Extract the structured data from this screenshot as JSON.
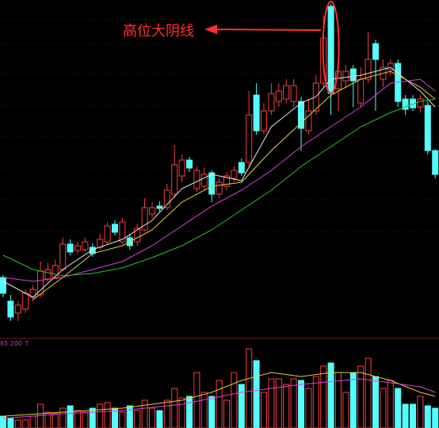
{
  "chart_data": [
    {
      "type": "candlestick",
      "annotation": "高位大阴线",
      "up_color": "#ff3c3c",
      "down_color": "#54fcfc",
      "annotation_color": "#ff3030",
      "ylim": [
        1.5,
        44
      ],
      "open": [
        9.0,
        6.0,
        4.5,
        5.0,
        6.5,
        6.8,
        8.8,
        9.0,
        10.0,
        13.2,
        12.4,
        12.5,
        12.8,
        12.8,
        13.5,
        15.7,
        13.5,
        14.0,
        13.5,
        15.0,
        17.0,
        18.0,
        17.8,
        19.5,
        21.8,
        23.8,
        20.2,
        20.5,
        22.2,
        19.5,
        20.5,
        21.5,
        23.5,
        23.5,
        32.0,
        27.5,
        30.0,
        31.2,
        31.5,
        31.2,
        31.2,
        27.5,
        30.0,
        33.5,
        43.2,
        32.8,
        33.8,
        35.3,
        31.0,
        34.0,
        38.5,
        34.0,
        35.2,
        36.0,
        31.5,
        31.5,
        30.5,
        30.7,
        25.0
      ],
      "high": [
        9.3,
        6.8,
        6.0,
        7.5,
        8.0,
        11.0,
        10.8,
        11.2,
        14.0,
        13.8,
        13.5,
        14.0,
        13.3,
        14.5,
        16.0,
        16.2,
        16.5,
        14.5,
        15.8,
        19.0,
        18.5,
        18.6,
        20.8,
        25.7,
        24.5,
        24.2,
        23.0,
        22.8,
        22.5,
        21.5,
        22.3,
        23.0,
        24.0,
        32.5,
        33.5,
        31.0,
        33.5,
        33.5,
        34.0,
        34.0,
        31.8,
        31.5,
        34.5,
        42.0,
        43.5,
        36.0,
        35.8,
        35.8,
        35.5,
        40.0,
        39.0,
        36.5,
        36.5,
        36.5,
        32.0,
        32.0,
        32.0,
        31.2,
        25.2
      ],
      "low": [
        6.5,
        3.5,
        3.5,
        4.5,
        6.0,
        6.5,
        8.5,
        8.8,
        9.8,
        11.8,
        12.0,
        12.2,
        11.6,
        12.5,
        13.2,
        14.3,
        13.2,
        12.5,
        13.0,
        14.8,
        16.5,
        17.3,
        17.5,
        19.0,
        21.0,
        22.3,
        19.8,
        20.0,
        18.5,
        19.0,
        20.0,
        21.0,
        21.8,
        23.0,
        27.0,
        27.0,
        29.5,
        30.5,
        31.0,
        30.5,
        25.0,
        27.0,
        29.5,
        33.0,
        29.5,
        30.0,
        33.0,
        30.5,
        30.5,
        33.5,
        30.0,
        33.0,
        34.5,
        30.5,
        29.5,
        30.0,
        29.8,
        24.5,
        21.5
      ],
      "close": [
        7.0,
        4.0,
        5.5,
        7.0,
        7.5,
        9.8,
        10.0,
        10.5,
        13.2,
        12.2,
        13.0,
        13.5,
        12.0,
        13.8,
        15.5,
        14.7,
        16.0,
        13.0,
        15.2,
        17.8,
        17.8,
        17.7,
        20.0,
        23.2,
        23.8,
        22.8,
        22.5,
        22.0,
        19.5,
        21.0,
        21.8,
        22.5,
        22.2,
        29.5,
        27.5,
        30.0,
        32.2,
        32.5,
        33.2,
        33.2,
        27.8,
        30.0,
        33.5,
        39.2,
        32.2,
        35.0,
        35.0,
        33.8,
        34.0,
        36.5,
        36.5,
        35.5,
        36.0,
        31.2,
        30.2,
        30.4,
        31.5,
        25.0,
        22.0
      ],
      "series": [
        {
          "color": "#e6e6e6",
          "x": [
            0,
            4,
            8,
            12,
            16,
            20,
            24,
            28,
            32,
            36,
            40,
            42,
            44,
            48,
            52,
            56,
            58
          ],
          "values": [
            8.5,
            6.5,
            10.0,
            12.5,
            13.8,
            16.2,
            20.2,
            22.0,
            21.2,
            28.0,
            31.0,
            31.8,
            34.0,
            34.5,
            35.5,
            32.5,
            30.5
          ]
        },
        {
          "color": "#e0d040",
          "x": [
            4,
            8,
            12,
            16,
            20,
            24,
            28,
            32,
            36,
            40,
            44,
            48,
            52,
            56,
            58
          ],
          "values": [
            6.2,
            9.0,
            12.0,
            13.0,
            15.0,
            18.5,
            20.5,
            21.0,
            25.0,
            28.5,
            32.0,
            34.0,
            35.0,
            33.0,
            31.5
          ]
        },
        {
          "color": "#e040e0",
          "x": [
            0,
            4,
            8,
            12,
            16,
            20,
            24,
            28,
            32,
            36,
            40,
            44,
            48,
            52,
            56,
            58
          ],
          "values": [
            9.0,
            8.5,
            9.0,
            10.0,
            11.0,
            13.0,
            15.5,
            18.0,
            20.0,
            22.5,
            25.5,
            28.0,
            30.5,
            33.5,
            34.0,
            32.5
          ]
        },
        {
          "color": "#30c030",
          "x": [
            0,
            4,
            8,
            12,
            16,
            20,
            24,
            28,
            32,
            36,
            40,
            44,
            48,
            52,
            56,
            58
          ],
          "values": [
            11.8,
            10.0,
            9.2,
            9.5,
            10.2,
            11.5,
            13.0,
            15.0,
            17.5,
            20.0,
            23.0,
            25.5,
            28.0,
            29.8,
            31.2,
            31.5
          ]
        }
      ]
    },
    {
      "type": "volume",
      "up_color": "#ff3c3c",
      "down_color": "#54fcfc",
      "tick_color": "#c040c0",
      "ylim": [
        0,
        85.2
      ],
      "yticks": [
        {
          "value": 85.2,
          "label": "85.200 ↑"
        }
      ],
      "values": [
        11.9,
        9.6,
        8.0,
        8.0,
        11.9,
        23.9,
        15.9,
        14.3,
        19.9,
        22.3,
        17.5,
        15.9,
        19.9,
        23.9,
        25.5,
        19.9,
        15.9,
        22.3,
        17.5,
        27.9,
        19.9,
        17.5,
        27.9,
        39.8,
        30.2,
        31.8,
        55.7,
        35.8,
        31.8,
        47.8,
        27.9,
        55.7,
        43.8,
        79.6,
        67.7,
        35.8,
        49.4,
        49.4,
        43.8,
        49.4,
        47.8,
        39.8,
        51.7,
        62.1,
        65.3,
        55.7,
        35.8,
        55.7,
        62.1,
        70.0,
        51.7,
        39.8,
        47.8,
        39.8,
        23.9,
        23.9,
        31.8,
        22.3,
        19.9
      ],
      "series": [
        {
          "color": "#e0d040",
          "x": [
            0,
            8,
            16,
            24,
            28,
            32,
            36,
            40,
            44,
            48,
            52,
            56,
            58
          ],
          "values": [
            11.9,
            15.9,
            19.9,
            27.9,
            35.8,
            47.8,
            55.7,
            51.7,
            55.7,
            55.7,
            47.8,
            35.8,
            31.8
          ]
        },
        {
          "color": "#e040e0",
          "x": [
            0,
            8,
            16,
            24,
            32,
            40,
            48,
            56,
            58
          ],
          "values": [
            9.6,
            14.3,
            17.5,
            23.9,
            35.8,
            43.8,
            49.4,
            41.4,
            35.8
          ]
        }
      ]
    }
  ]
}
